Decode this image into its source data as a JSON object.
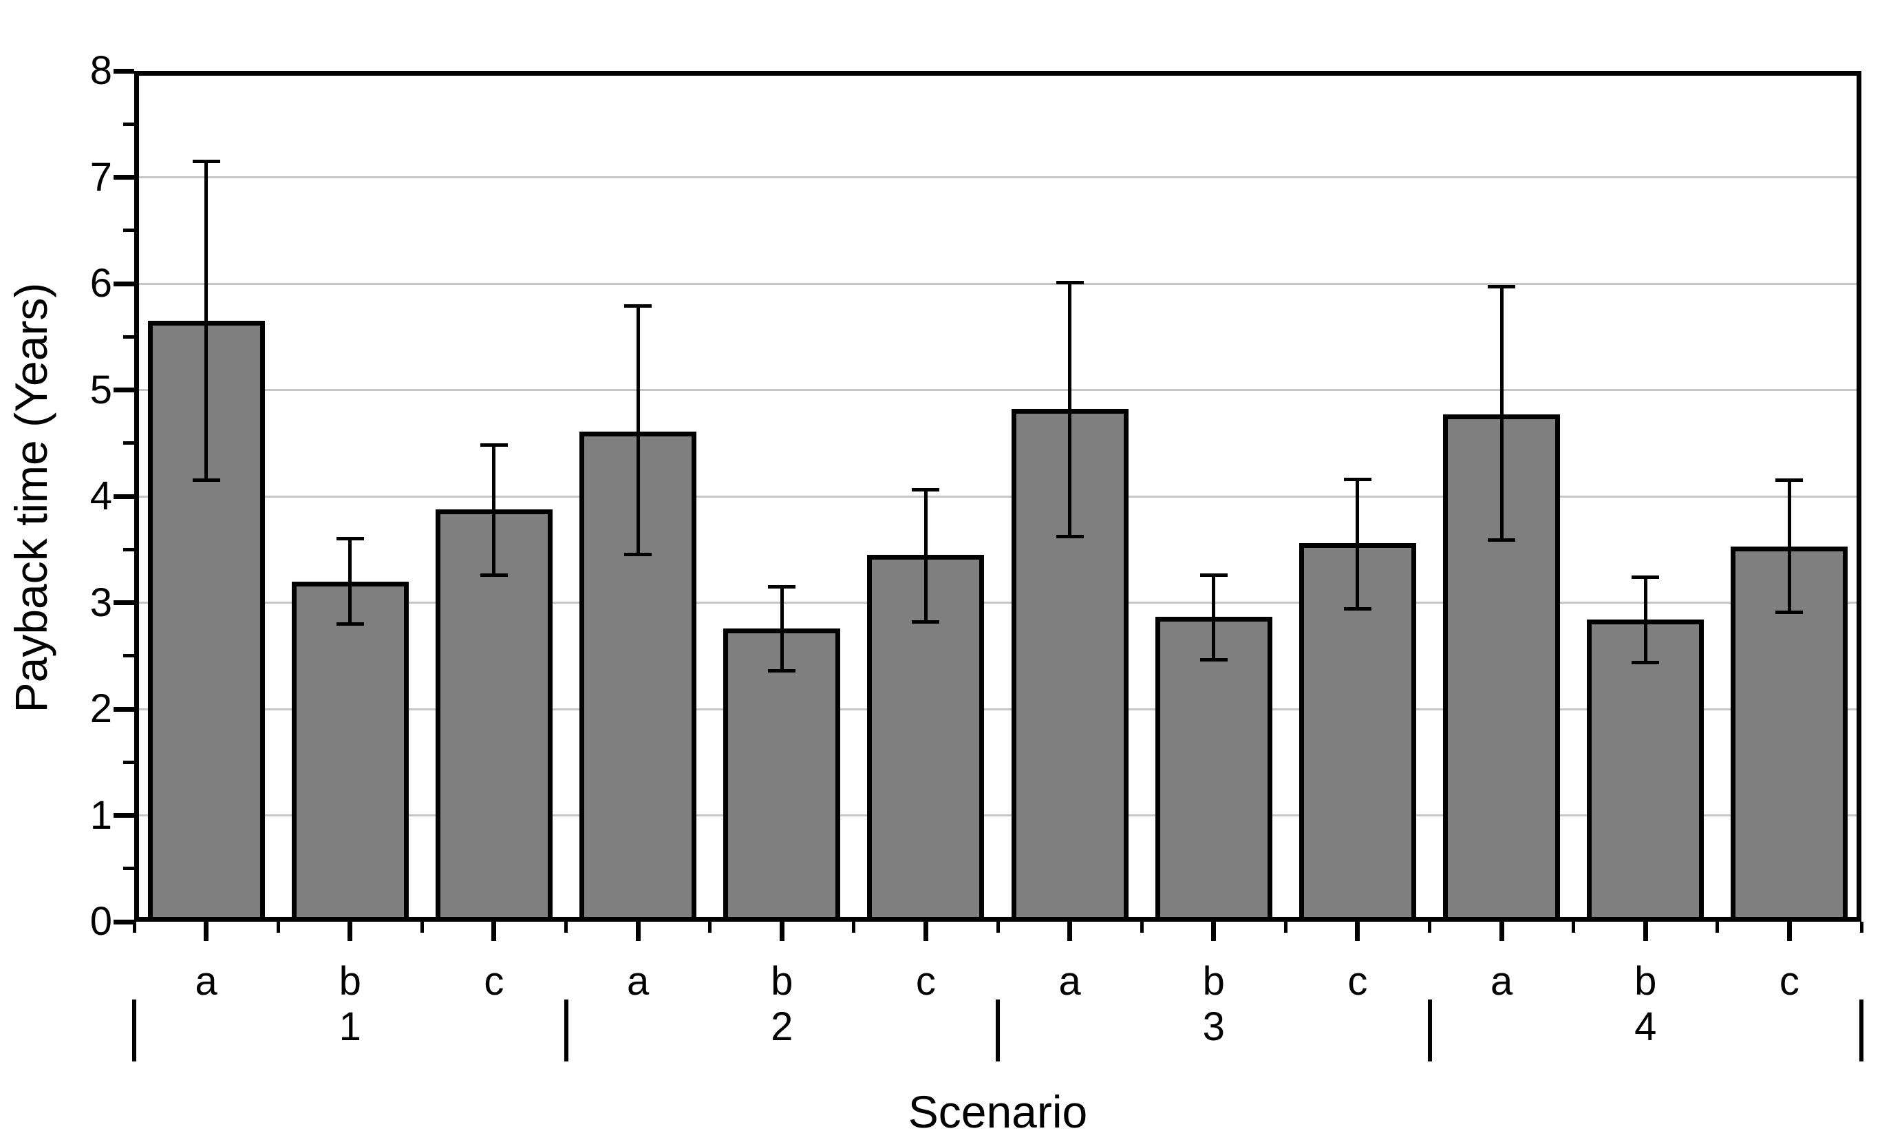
{
  "chart_data": {
    "type": "bar",
    "title": "",
    "xlabel": "Scenario",
    "ylabel": "Payback time (Years)",
    "ylim": [
      0,
      8
    ],
    "ytick_interval": 1,
    "yminor_interval": 0.5,
    "y_tick_labels": [
      "0",
      "1",
      "2",
      "3",
      "4",
      "5",
      "6",
      "7",
      "8"
    ],
    "grid": "horizontal-major-only",
    "legend": "none",
    "bar_color": "#7f7f7f",
    "bar_border_color": "#000000",
    "gridline_color": "#c6c6c6",
    "error_bar_color": "#000000",
    "groups": [
      {
        "label": "1",
        "bars": [
          {
            "label": "a",
            "value": 5.65,
            "err_low": 4.15,
            "err_high": 7.15
          },
          {
            "label": "b",
            "value": 3.2,
            "err_low": 2.8,
            "err_high": 3.6
          },
          {
            "label": "c",
            "value": 3.88,
            "err_low": 3.26,
            "err_high": 4.48
          }
        ]
      },
      {
        "label": "2",
        "bars": [
          {
            "label": "a",
            "value": 4.61,
            "err_low": 3.45,
            "err_high": 5.79
          },
          {
            "label": "b",
            "value": 2.76,
            "err_low": 2.36,
            "err_high": 3.15
          },
          {
            "label": "c",
            "value": 3.45,
            "err_low": 2.82,
            "err_high": 4.06
          }
        ]
      },
      {
        "label": "3",
        "bars": [
          {
            "label": "a",
            "value": 4.82,
            "err_low": 3.62,
            "err_high": 6.01
          },
          {
            "label": "b",
            "value": 2.87,
            "err_low": 2.46,
            "err_high": 3.26
          },
          {
            "label": "c",
            "value": 3.56,
            "err_low": 2.94,
            "err_high": 4.16
          }
        ]
      },
      {
        "label": "4",
        "bars": [
          {
            "label": "a",
            "value": 4.77,
            "err_low": 3.59,
            "err_high": 5.97
          },
          {
            "label": "b",
            "value": 2.84,
            "err_low": 2.44,
            "err_high": 3.24
          },
          {
            "label": "c",
            "value": 3.53,
            "err_low": 2.91,
            "err_high": 4.15
          }
        ]
      }
    ]
  }
}
